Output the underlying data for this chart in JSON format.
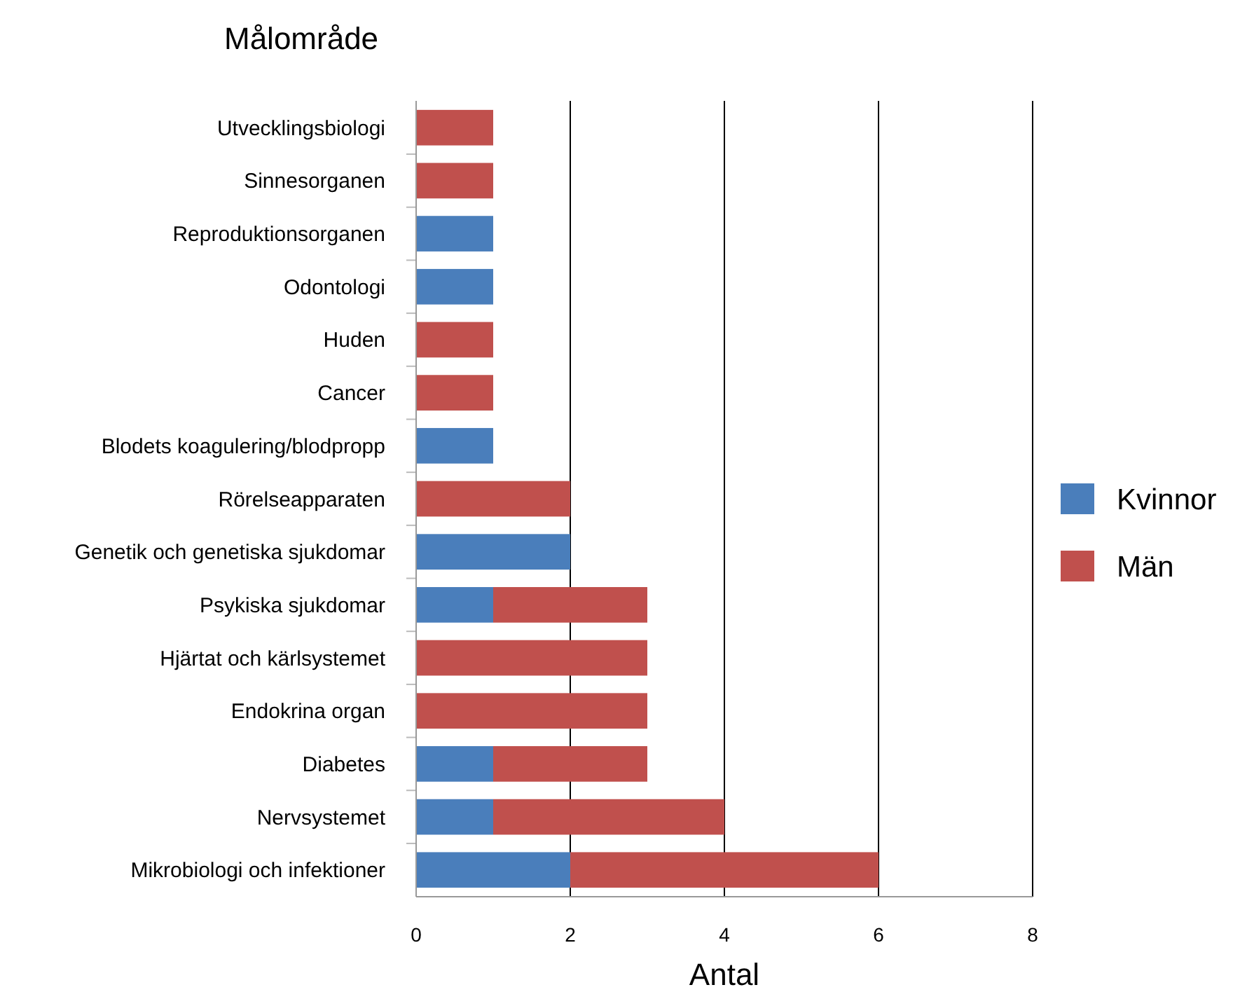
{
  "chart_data": {
    "type": "bar",
    "orientation": "horizontal",
    "stacked": true,
    "ylabel": "Målområde",
    "xlabel": "Antal",
    "categories": [
      "Utvecklingsbiologi",
      "Sinnesorganen",
      "Reproduktionsorganen",
      "Odontologi",
      "Huden",
      "Cancer",
      "Blodets koagulering/blodpropp",
      "Rörelseapparaten",
      "Genetik och genetiska sjukdomar",
      "Psykiska sjukdomar",
      "Hjärtat och kärlsystemet",
      "Endokrina organ",
      "Diabetes",
      "Nervsystemet",
      "Mikrobiologi och infektioner"
    ],
    "series": [
      {
        "name": "Kvinnor",
        "color": "#4a7ebb",
        "values": [
          0,
          0,
          1,
          1,
          0,
          0,
          1,
          0,
          2,
          1,
          0,
          0,
          1,
          1,
          2
        ]
      },
      {
        "name": "Män",
        "color": "#c0504d",
        "values": [
          1,
          1,
          0,
          0,
          1,
          1,
          0,
          2,
          0,
          2,
          3,
          3,
          2,
          3,
          4
        ]
      }
    ],
    "xlim": [
      0,
      8
    ],
    "xticks": [
      0,
      2,
      4,
      6,
      8
    ],
    "grid": "x",
    "legend": "right"
  }
}
